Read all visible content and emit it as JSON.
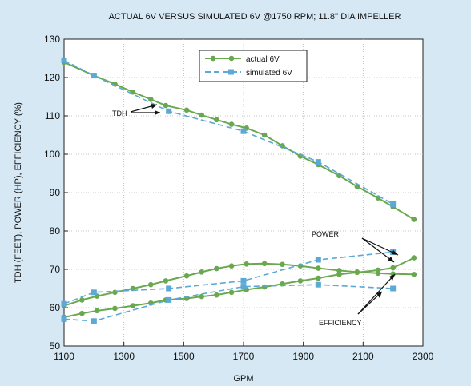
{
  "chart_data": {
    "type": "line",
    "title": "ACTUAL 6V VERSUS SIMULATED 6V @1750 RPM; 11.8'' DIA IMPELLER",
    "xlabel": "GPM",
    "ylabel": "TDH (FEET), POWER (HP), EFFICIENCY (%)",
    "xlim": [
      1100,
      2300
    ],
    "ylim": [
      50,
      130
    ],
    "xticks": [
      1100,
      1300,
      1500,
      1700,
      1900,
      2100,
      2300
    ],
    "yticks": [
      50,
      60,
      70,
      80,
      90,
      100,
      110,
      120,
      130
    ],
    "grid": true,
    "legend_position": "top-center",
    "legend": [
      {
        "name": "actual 6V",
        "color": "#6aa84f",
        "dash": "solid"
      },
      {
        "name": "simulated 6V",
        "color": "#5aa9d6",
        "dash": "dashed"
      }
    ],
    "annotations": [
      "TDH",
      "POWER",
      "EFFICIENCY"
    ],
    "series": [
      {
        "name": "actual 6V",
        "curve": "TDH",
        "style": "actual",
        "x": [
          1100,
          1200,
          1270,
          1330,
          1390,
          1440,
          1510,
          1560,
          1610,
          1660,
          1710,
          1770,
          1830,
          1890,
          1950,
          2020,
          2080,
          2150,
          2200,
          2270
        ],
        "y": [
          124,
          120.5,
          118.3,
          116.2,
          114.3,
          112.7,
          111.5,
          110.2,
          109,
          107.8,
          106.8,
          105,
          102.2,
          99.5,
          97.3,
          94.4,
          91.6,
          88.6,
          86.3,
          83
        ]
      },
      {
        "name": "simulated 6V",
        "curve": "TDH",
        "style": "simulated",
        "x": [
          1100,
          1200,
          1450,
          1700,
          1950,
          2200
        ],
        "y": [
          124.5,
          120.5,
          111.2,
          106,
          98,
          87
        ]
      },
      {
        "name": "actual 6V",
        "curve": "POWER",
        "style": "actual",
        "x": [
          1100,
          1160,
          1210,
          1270,
          1330,
          1390,
          1440,
          1510,
          1560,
          1610,
          1660,
          1710,
          1770,
          1830,
          1890,
          1950,
          2020,
          2080,
          2150,
          2200,
          2270
        ],
        "y": [
          60.5,
          62,
          63,
          64,
          65,
          66,
          67,
          68.3,
          69.3,
          70.2,
          70.9,
          71.4,
          71.5,
          71.3,
          70.9,
          70.3,
          69.7,
          69.3,
          69,
          68.8,
          68.7
        ]
      },
      {
        "name": "simulated 6V",
        "curve": "POWER",
        "style": "simulated",
        "x": [
          1100,
          1200,
          1450,
          1700,
          1950,
          2200
        ],
        "y": [
          61,
          64,
          65,
          67,
          72.5,
          74.5
        ]
      },
      {
        "name": "actual 6V",
        "curve": "EFFICIENCY",
        "style": "actual",
        "x": [
          1100,
          1160,
          1210,
          1270,
          1330,
          1390,
          1440,
          1510,
          1560,
          1610,
          1660,
          1710,
          1770,
          1830,
          1890,
          1950,
          2020,
          2080,
          2150,
          2200,
          2270
        ],
        "y": [
          57.5,
          58.5,
          59.2,
          59.8,
          60.5,
          61.2,
          62,
          62.4,
          62.9,
          63.3,
          64,
          64.7,
          65.4,
          66.2,
          67,
          67.7,
          68.7,
          69.2,
          69.8,
          70.4,
          73
        ]
      },
      {
        "name": "simulated 6V",
        "curve": "EFFICIENCY",
        "style": "simulated",
        "x": [
          1100,
          1200,
          1450,
          1700,
          1950,
          2200
        ],
        "y": [
          57,
          56.5,
          62,
          65.5,
          66,
          65
        ]
      }
    ]
  },
  "colors": {
    "actual": "#6aa84f",
    "simulated": "#5aa9d6",
    "background": "#d6e8f4",
    "plot_background": "#ffffff",
    "grid": "#b5b5b5"
  }
}
